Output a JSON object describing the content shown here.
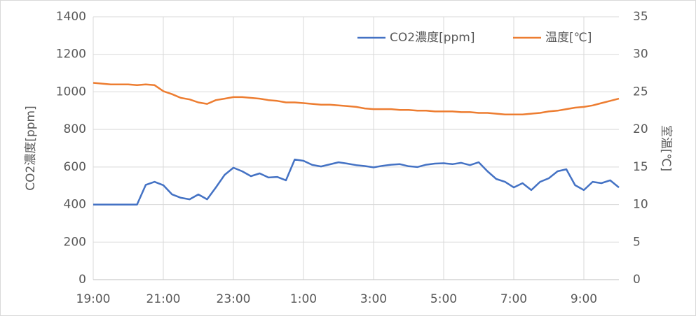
{
  "chart_data": {
    "type": "line",
    "x": [
      "19:00",
      "19:15",
      "19:30",
      "19:45",
      "20:00",
      "20:15",
      "20:30",
      "20:45",
      "21:00",
      "21:15",
      "21:30",
      "21:45",
      "22:00",
      "22:15",
      "22:30",
      "22:45",
      "23:00",
      "23:15",
      "23:30",
      "23:45",
      "0:00",
      "0:15",
      "0:30",
      "0:45",
      "1:00",
      "1:15",
      "1:30",
      "1:45",
      "2:00",
      "2:15",
      "2:30",
      "2:45",
      "3:00",
      "3:15",
      "3:30",
      "3:45",
      "4:00",
      "4:15",
      "4:30",
      "4:45",
      "5:00",
      "5:15",
      "5:30",
      "5:45",
      "6:00",
      "6:15",
      "6:30",
      "6:45",
      "7:00",
      "7:15",
      "7:30",
      "7:45",
      "8:00",
      "8:15",
      "8:30",
      "8:45",
      "9:00",
      "9:15",
      "9:30",
      "9:45",
      "10:00"
    ],
    "series": [
      {
        "name": "CO2濃度[ppm]",
        "color": "#4472c4",
        "values": [
          400,
          400,
          400,
          400,
          400,
          400,
          505,
          521,
          503,
          454,
          436,
          428,
          454,
          428,
          491,
          558,
          596,
          577,
          551,
          566,
          544,
          547,
          529,
          640,
          633,
          611,
          603,
          614,
          625,
          618,
          610,
          605,
          598,
          606,
          612,
          615,
          604,
          600,
          612,
          618,
          620,
          615,
          622,
          610,
          625,
          577,
          536,
          521,
          491,
          514,
          477,
          521,
          540,
          577,
          588,
          503,
          477,
          521,
          514,
          529,
          491
        ]
      },
      {
        "name": "温度[℃]",
        "color": "#ed7d31",
        "axis": "y2",
        "values": [
          26.2,
          26.1,
          26.0,
          26.0,
          26.0,
          25.9,
          26.0,
          25.9,
          25.1,
          24.7,
          24.2,
          24.0,
          23.6,
          23.4,
          23.9,
          24.1,
          24.3,
          24.3,
          24.2,
          24.1,
          23.9,
          23.8,
          23.6,
          23.6,
          23.5,
          23.4,
          23.3,
          23.3,
          23.2,
          23.1,
          23.0,
          22.8,
          22.7,
          22.7,
          22.7,
          22.6,
          22.6,
          22.5,
          22.5,
          22.4,
          22.4,
          22.4,
          22.3,
          22.3,
          22.2,
          22.2,
          22.1,
          22.0,
          22.0,
          22.0,
          22.1,
          22.2,
          22.4,
          22.5,
          22.7,
          22.9,
          23.0,
          23.2,
          23.5,
          23.8,
          24.1
        ]
      }
    ],
    "xlim": [
      "19:00",
      "10:00"
    ],
    "xticks": [
      "19:00",
      "21:00",
      "23:00",
      "1:00",
      "3:00",
      "5:00",
      "7:00",
      "9:00"
    ],
    "ylim": [
      0,
      1400
    ],
    "yticks": [
      0,
      200,
      400,
      600,
      800,
      1000,
      1200,
      1400
    ],
    "y2lim": [
      0,
      35
    ],
    "y2ticks": [
      0,
      5,
      10,
      15,
      20,
      25,
      30,
      35
    ],
    "ylabel": "CO2濃度[ppm]",
    "y2label": "室温[℃]",
    "grid": true,
    "legend": "top-right"
  }
}
